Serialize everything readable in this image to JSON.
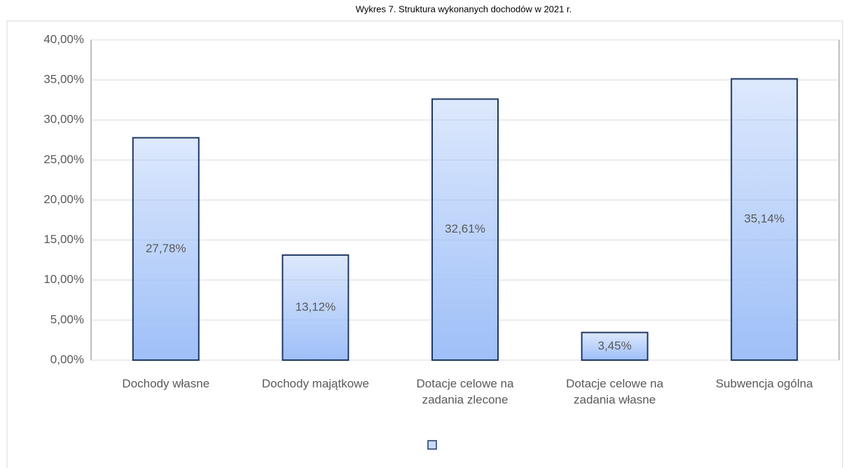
{
  "chart_data": {
    "type": "bar",
    "title": "Wykres 7. Struktura wykonanych dochodów w 2021 r.",
    "categories": [
      "Dochody własne",
      "Dochody majątkowe",
      "Dotacje celowe na zadania zlecone",
      "Dotacje celowe na zadania własne",
      "Subwencja ogólna"
    ],
    "values": [
      27.78,
      13.12,
      32.61,
      3.45,
      35.14
    ],
    "value_labels": [
      "27,78%",
      "13,12%",
      "32,61%",
      "3,45%",
      "35,14%"
    ],
    "color": "#9ebff8",
    "ylim": [
      0,
      40
    ],
    "yticks": [
      {
        "value": 0,
        "label": "0,00%"
      },
      {
        "value": 5,
        "label": "5,00%"
      },
      {
        "value": 10,
        "label": "10,00%"
      },
      {
        "value": 15,
        "label": "15,00%"
      },
      {
        "value": 20,
        "label": "20,00%"
      },
      {
        "value": 25,
        "label": "25,00%"
      },
      {
        "value": 30,
        "label": "30,00%"
      },
      {
        "value": 35,
        "label": "35,00%"
      },
      {
        "value": 40,
        "label": "40,00%"
      }
    ],
    "grid": true
  }
}
